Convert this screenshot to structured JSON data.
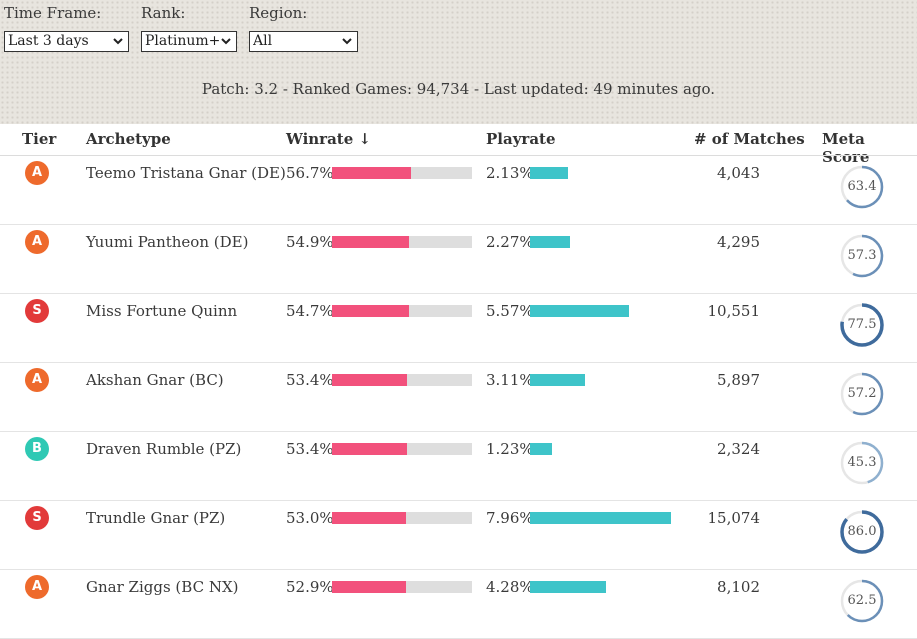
{
  "filters": {
    "time_frame": {
      "label": "Time Frame:",
      "value": "Last 3 days"
    },
    "rank": {
      "label": "Rank:",
      "value": "Platinum+"
    },
    "region": {
      "label": "Region:",
      "value": "All"
    }
  },
  "info": "Patch: 3.2 - Ranked Games: 94,734 - Last updated: 49 minutes ago.",
  "columns": {
    "tier": "Tier",
    "archetype": "Archetype",
    "winrate": "Winrate ↓",
    "playrate": "Playrate",
    "matches": "# of Matches",
    "meta_score": "Meta Score"
  },
  "tier_colors": {
    "S": "#e23a3a",
    "A": "#ee6a2c",
    "B": "#2fc9b4"
  },
  "rows": [
    {
      "tier": "A",
      "archetype": "Teemo Tristana Gnar (DE)",
      "winrate": "56.7%",
      "winrate_value": 56.7,
      "playrate": "2.13%",
      "playrate_value": 2.13,
      "matches": "4,043",
      "meta_score": "63.4",
      "meta_value": 63.4
    },
    {
      "tier": "A",
      "archetype": "Yuumi Pantheon (DE)",
      "winrate": "54.9%",
      "winrate_value": 54.9,
      "playrate": "2.27%",
      "playrate_value": 2.27,
      "matches": "4,295",
      "meta_score": "57.3",
      "meta_value": 57.3
    },
    {
      "tier": "S",
      "archetype": "Miss Fortune Quinn",
      "winrate": "54.7%",
      "winrate_value": 54.7,
      "playrate": "5.57%",
      "playrate_value": 5.57,
      "matches": "10,551",
      "meta_score": "77.5",
      "meta_value": 77.5
    },
    {
      "tier": "A",
      "archetype": "Akshan Gnar (BC)",
      "winrate": "53.4%",
      "winrate_value": 53.4,
      "playrate": "3.11%",
      "playrate_value": 3.11,
      "matches": "5,897",
      "meta_score": "57.2",
      "meta_value": 57.2
    },
    {
      "tier": "B",
      "archetype": "Draven Rumble (PZ)",
      "winrate": "53.4%",
      "winrate_value": 53.4,
      "playrate": "1.23%",
      "playrate_value": 1.23,
      "matches": "2,324",
      "meta_score": "45.3",
      "meta_value": 45.3
    },
    {
      "tier": "S",
      "archetype": "Trundle Gnar (PZ)",
      "winrate": "53.0%",
      "winrate_value": 53.0,
      "playrate": "7.96%",
      "playrate_value": 7.96,
      "matches": "15,074",
      "meta_score": "86.0",
      "meta_value": 86.0
    },
    {
      "tier": "A",
      "archetype": "Gnar Ziggs (BC NX)",
      "winrate": "52.9%",
      "winrate_value": 52.9,
      "playrate": "4.28%",
      "playrate_value": 4.28,
      "matches": "8,102",
      "meta_score": "62.5",
      "meta_value": 62.5
    }
  ]
}
